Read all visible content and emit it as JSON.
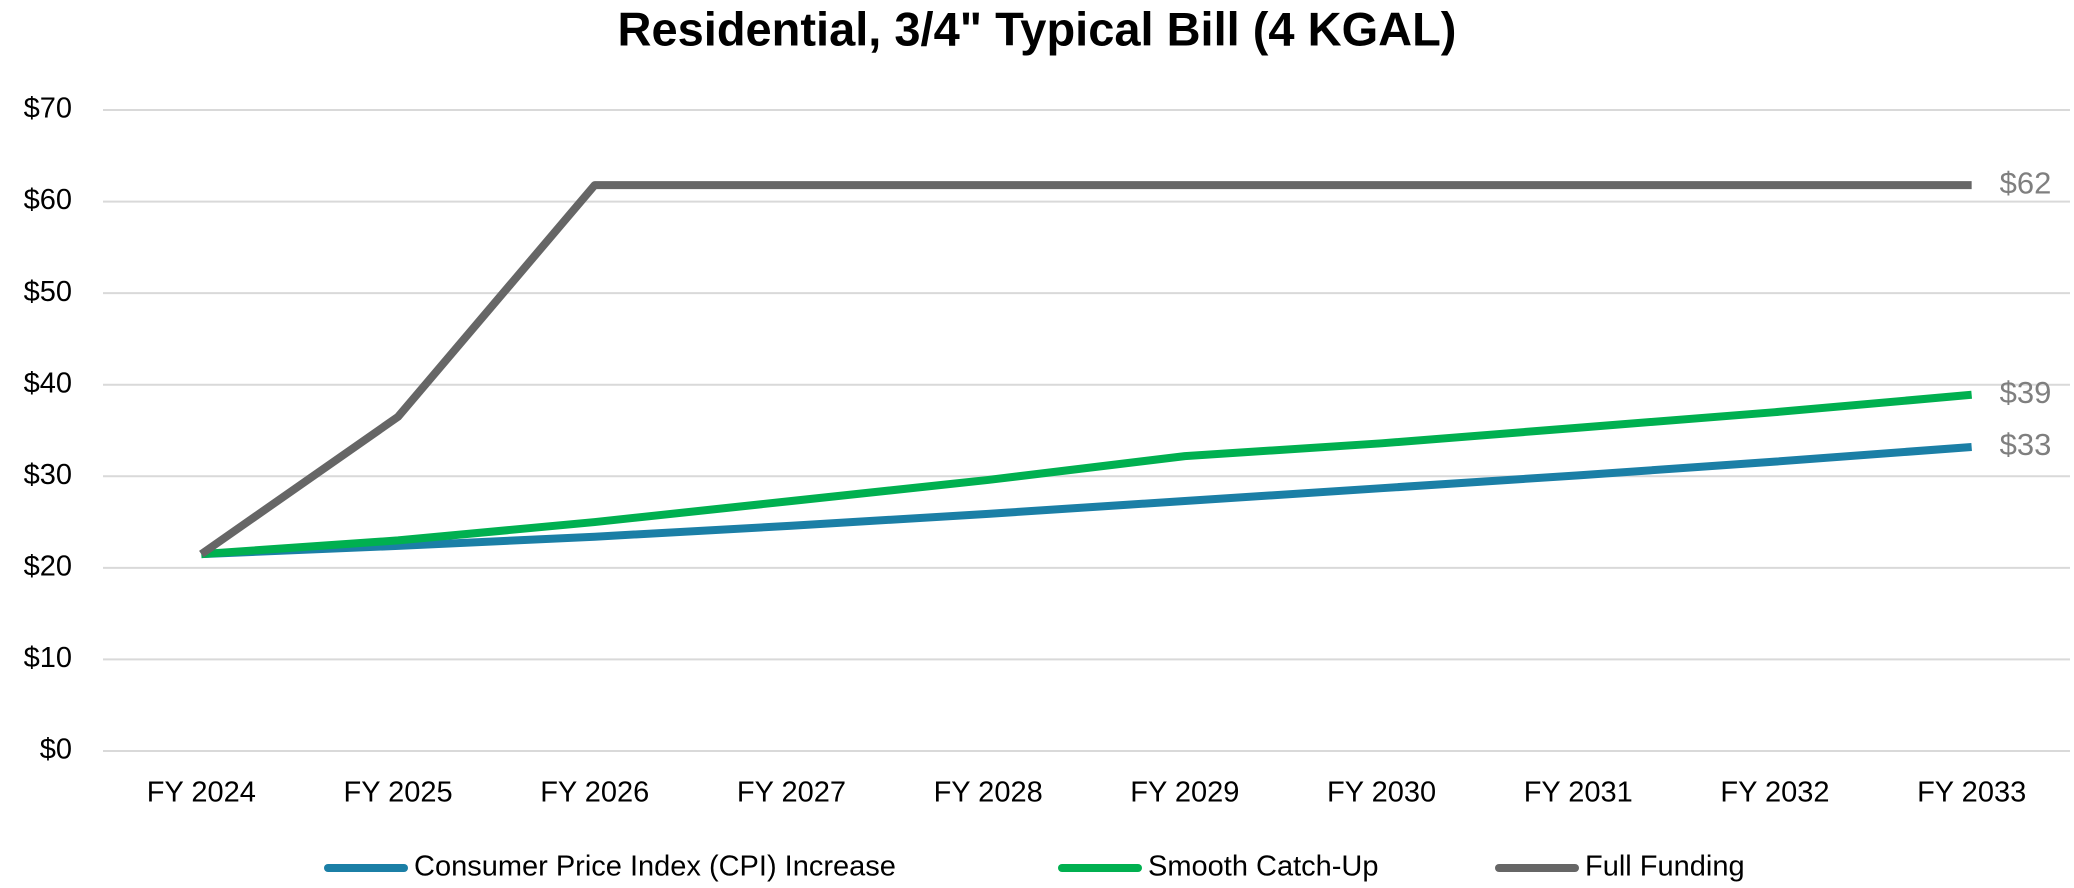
{
  "chart_data": {
    "type": "line",
    "title": "Residential, 3/4\" Typical Bill (4 KGAL)",
    "categories": [
      "FY 2024",
      "FY 2025",
      "FY 2026",
      "FY 2027",
      "FY 2028",
      "FY 2029",
      "FY 2030",
      "FY 2031",
      "FY 2032",
      "FY 2033"
    ],
    "series": [
      {
        "name": "Consumer Price Index (CPI) Increase",
        "color": "#1b7fa6",
        "values": [
          21.5,
          22.4,
          23.4,
          24.6,
          25.9,
          27.3,
          28.7,
          30.1,
          31.6,
          33.2
        ],
        "value_labels": [
          null,
          null,
          null,
          null,
          null,
          null,
          null,
          null,
          null,
          "$33"
        ]
      },
      {
        "name": "Smooth Catch-Up",
        "color": "#00b050",
        "values": [
          21.5,
          23.0,
          25.0,
          27.3,
          29.6,
          32.2,
          33.6,
          35.3,
          37.0,
          38.9
        ],
        "value_labels": [
          null,
          null,
          null,
          null,
          null,
          null,
          null,
          null,
          null,
          "$39"
        ]
      },
      {
        "name": "Full Funding",
        "color": "#666666",
        "values": [
          21.5,
          36.5,
          61.8,
          61.8,
          61.8,
          61.8,
          61.8,
          61.8,
          61.8,
          61.8
        ],
        "value_labels": [
          null,
          null,
          null,
          null,
          null,
          null,
          null,
          null,
          null,
          "$62"
        ]
      }
    ],
    "ylim": [
      0,
      70
    ],
    "yticks": [
      {
        "value": 0,
        "label": "$0"
      },
      {
        "value": 10,
        "label": "$10"
      },
      {
        "value": 20,
        "label": "$20"
      },
      {
        "value": 30,
        "label": "$30"
      },
      {
        "value": 40,
        "label": "$40"
      },
      {
        "value": 50,
        "label": "$50"
      },
      {
        "value": 60,
        "label": "$60"
      },
      {
        "value": 70,
        "label": "$70"
      }
    ],
    "grid": true,
    "legend": "bottom"
  }
}
